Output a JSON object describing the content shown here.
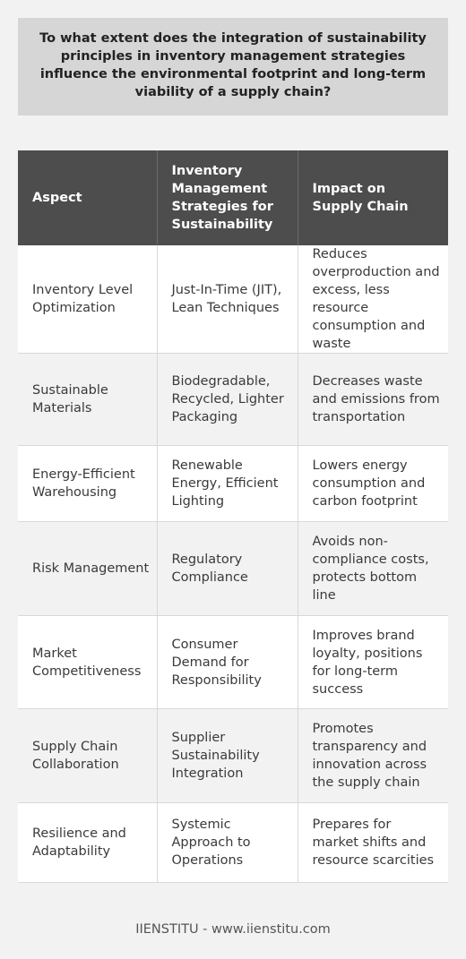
{
  "question": "To what extent does the integration of sustainability principles in inventory management strategies influence the environmental footprint and long-term viability of a supply chain?",
  "table": {
    "headers": [
      "Aspect",
      "Inventory Management Strategies for Sustainability",
      "Impact on Supply Chain"
    ],
    "rows": [
      {
        "aspect": "Inventory Level Optimization",
        "strategy": "Just-In-Time (JIT), Lean Techniques",
        "impact": "Reduces overproduction and excess, less resource consumption and waste"
      },
      {
        "aspect": "Sustainable Materials",
        "strategy": "Biodegradable, Recycled, Lighter Packaging",
        "impact": "Decreases waste and emissions from transportation"
      },
      {
        "aspect": "Energy-Efficient Warehousing",
        "strategy": "Renewable Energy, Efficient Lighting",
        "impact": "Lowers energy consumption and carbon footprint"
      },
      {
        "aspect": "Risk Management",
        "strategy": "Regulatory Compliance",
        "impact": "Avoids non-compliance costs, protects bottom line"
      },
      {
        "aspect": "Market Competitiveness",
        "strategy": "Consumer Demand for Responsibility",
        "impact": "Improves brand loyalty, positions for long-term success"
      },
      {
        "aspect": "Supply Chain Collaboration",
        "strategy": "Supplier Sustainability Integration",
        "impact": "Promotes transparency and innovation across the supply chain"
      },
      {
        "aspect": "Resilience and Adaptability",
        "strategy": "Systemic Approach to Operations",
        "impact": "Prepares for market shifts and resource scarcities"
      }
    ]
  },
  "footer": "IIENSTITU - www.iienstitu.com"
}
